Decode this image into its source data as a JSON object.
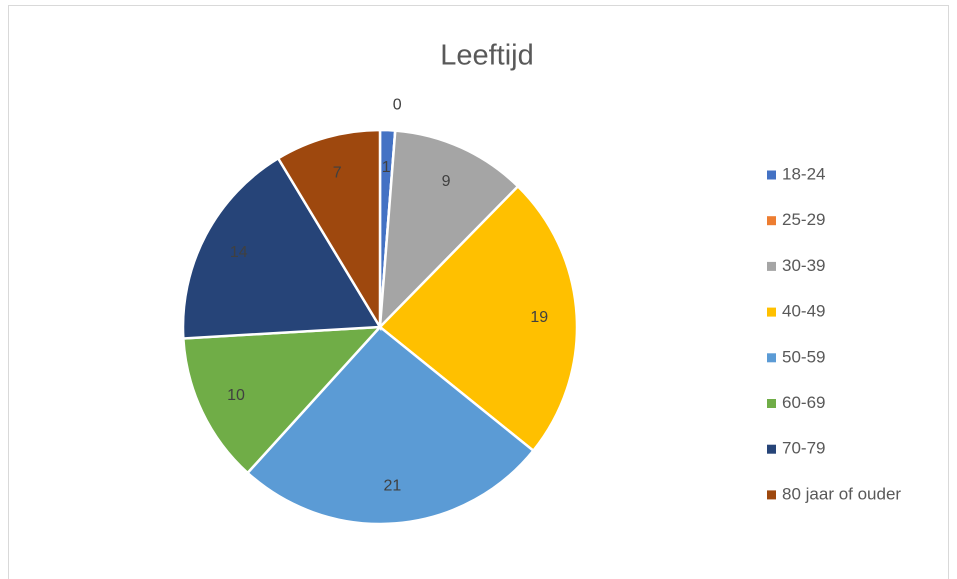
{
  "chart_data": {
    "type": "pie",
    "title": "Leeftijd",
    "categories": [
      "18-24",
      "25-29",
      "30-39",
      "40-49",
      "50-59",
      "60-69",
      "70-79",
      "80 jaar of ouder"
    ],
    "values": [
      1,
      0,
      9,
      19,
      21,
      10,
      14,
      7
    ],
    "colors": [
      "#4472c4",
      "#ed7d31",
      "#a5a5a5",
      "#ffc000",
      "#5b9bd5",
      "#70ad47",
      "#264478",
      "#9e480e"
    ],
    "legend": "right"
  }
}
